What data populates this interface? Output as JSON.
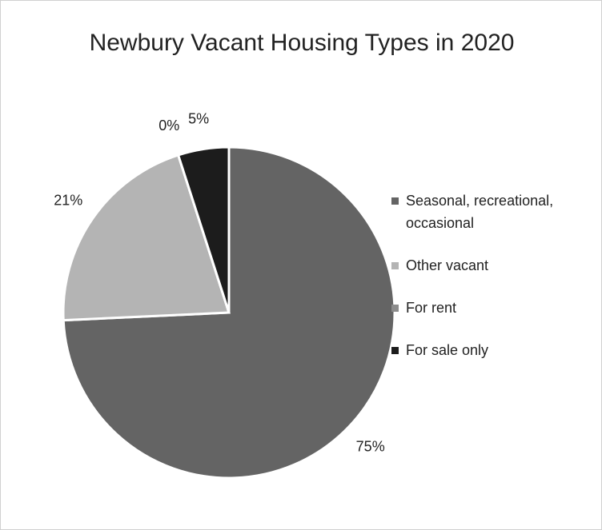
{
  "chart_data": {
    "type": "pie",
    "title": "Newbury Vacant Housing Types in 2020",
    "categories": [
      "Seasonal, recreational, occasional",
      "Other vacant",
      "For rent",
      "For sale only"
    ],
    "values": [
      75,
      21,
      0,
      5
    ],
    "value_labels": [
      "75%",
      "21%",
      "0%",
      "5%"
    ],
    "colors": [
      "#646464",
      "#b4b4b4",
      "#8c8c8c",
      "#1c1c1c"
    ],
    "legend": "right"
  }
}
